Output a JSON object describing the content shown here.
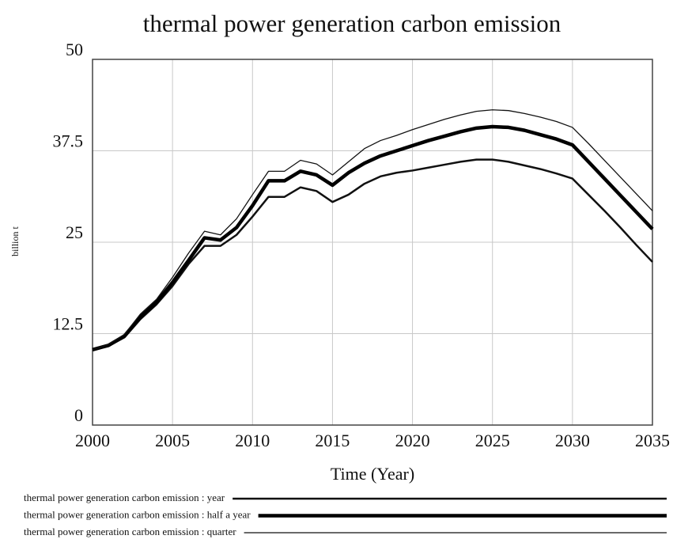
{
  "chart_data": {
    "type": "line",
    "title": "thermal power generation carbon emission",
    "xlabel": "Time (Year)",
    "ylabel": "billion t",
    "x": [
      2000,
      2001,
      2002,
      2003,
      2004,
      2005,
      2006,
      2007,
      2008,
      2009,
      2010,
      2011,
      2012,
      2013,
      2014,
      2015,
      2016,
      2017,
      2018,
      2019,
      2020,
      2021,
      2022,
      2023,
      2024,
      2025,
      2026,
      2027,
      2028,
      2029,
      2030,
      2031,
      2032,
      2033,
      2034,
      2035
    ],
    "series": [
      {
        "name": "thermal power generation carbon emission : year",
        "color": "#111111",
        "line_width": 2.5,
        "values": [
          10.3,
          10.8,
          12,
          14.5,
          16.5,
          19,
          22,
          24.5,
          24.5,
          26,
          28.5,
          31.2,
          31.2,
          32.5,
          32,
          30.5,
          31.5,
          33,
          34,
          34.5,
          34.8,
          35.2,
          35.6,
          36,
          36.3,
          36.3,
          36,
          35.5,
          35,
          34.4,
          33.7,
          31.5,
          29.3,
          27,
          24.6,
          22.3
        ]
      },
      {
        "name": "thermal power generation carbon emission : half a year",
        "color": "#000000",
        "line_width": 4.5,
        "values": [
          10.3,
          10.9,
          12.2,
          14.8,
          16.8,
          19.5,
          22.5,
          25.6,
          25.3,
          27,
          30,
          33.4,
          33.4,
          34.7,
          34.2,
          32.8,
          34.5,
          35.8,
          36.8,
          37.5,
          38.2,
          38.9,
          39.5,
          40.1,
          40.6,
          40.8,
          40.7,
          40.3,
          39.7,
          39.1,
          38.3,
          36,
          33.7,
          31.4,
          29.1,
          26.8
        ]
      },
      {
        "name": "thermal power generation carbon emission : quarter",
        "color": "#111111",
        "line_width": 1.3,
        "values": [
          10.3,
          11,
          12.4,
          15.2,
          17.2,
          20.2,
          23.5,
          26.5,
          26,
          28.2,
          31.5,
          34.7,
          34.7,
          36.2,
          35.7,
          34.2,
          36,
          37.8,
          38.9,
          39.6,
          40.4,
          41.1,
          41.8,
          42.4,
          42.9,
          43.1,
          43,
          42.6,
          42.1,
          41.5,
          40.7,
          38.5,
          36.2,
          33.9,
          31.6,
          29.3
        ]
      }
    ],
    "xlim": [
      2000,
      2035
    ],
    "xticks": [
      2000,
      2005,
      2010,
      2015,
      2020,
      2025,
      2030,
      2035
    ],
    "ylim": [
      0,
      50
    ],
    "yticks": [
      0,
      12.5,
      25,
      37.5,
      50
    ],
    "grid": true
  }
}
